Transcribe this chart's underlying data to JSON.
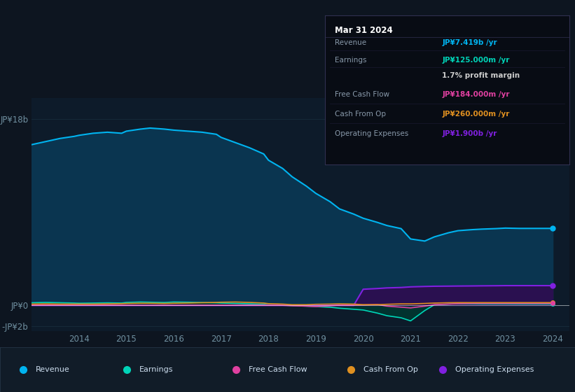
{
  "background_color": "#0d1520",
  "plot_bg_color": "#0d1b2a",
  "years_x": [
    2013.0,
    2013.3,
    2013.6,
    2013.9,
    2014.0,
    2014.3,
    2014.6,
    2014.9,
    2015.0,
    2015.3,
    2015.5,
    2015.8,
    2016.0,
    2016.3,
    2016.6,
    2016.9,
    2017.0,
    2017.3,
    2017.6,
    2017.9,
    2018.0,
    2018.3,
    2018.5,
    2018.8,
    2019.0,
    2019.3,
    2019.5,
    2019.8,
    2020.0,
    2020.3,
    2020.5,
    2020.8,
    2021.0,
    2021.3,
    2021.5,
    2021.8,
    2022.0,
    2022.3,
    2022.5,
    2022.8,
    2023.0,
    2023.3,
    2023.6,
    2023.9,
    2024.0
  ],
  "revenue": [
    15.5,
    15.8,
    16.1,
    16.3,
    16.4,
    16.6,
    16.7,
    16.6,
    16.8,
    17.0,
    17.1,
    17.0,
    16.9,
    16.8,
    16.7,
    16.5,
    16.2,
    15.7,
    15.2,
    14.6,
    14.0,
    13.2,
    12.4,
    11.5,
    10.8,
    10.0,
    9.3,
    8.8,
    8.4,
    8.0,
    7.7,
    7.4,
    6.4,
    6.2,
    6.6,
    7.0,
    7.2,
    7.3,
    7.35,
    7.4,
    7.45,
    7.42,
    7.42,
    7.42,
    7.419
  ],
  "earnings": [
    0.25,
    0.28,
    0.25,
    0.22,
    0.2,
    0.22,
    0.24,
    0.22,
    0.28,
    0.32,
    0.3,
    0.27,
    0.32,
    0.3,
    0.27,
    0.24,
    0.22,
    0.18,
    0.14,
    0.1,
    0.05,
    0.02,
    -0.03,
    -0.08,
    -0.12,
    -0.18,
    -0.28,
    -0.38,
    -0.45,
    -0.75,
    -1.0,
    -1.2,
    -1.5,
    -0.5,
    0.05,
    0.12,
    0.14,
    0.14,
    0.13,
    0.13,
    0.13,
    0.125,
    0.125,
    0.125,
    0.125
  ],
  "free_cash_flow": [
    0.02,
    0.02,
    0.02,
    0.02,
    0.02,
    0.02,
    0.02,
    0.02,
    0.02,
    0.02,
    0.02,
    0.02,
    0.02,
    0.02,
    0.02,
    0.02,
    0.02,
    0.02,
    0.02,
    0.02,
    0.01,
    0.0,
    -0.04,
    -0.08,
    -0.12,
    -0.04,
    0.01,
    0.02,
    0.04,
    0.08,
    -0.08,
    -0.18,
    -0.25,
    -0.08,
    0.06,
    0.12,
    0.16,
    0.18,
    0.184,
    0.184,
    0.184,
    0.184,
    0.184,
    0.184,
    0.184
  ],
  "cash_from_op": [
    0.12,
    0.14,
    0.12,
    0.12,
    0.12,
    0.12,
    0.14,
    0.16,
    0.18,
    0.2,
    0.2,
    0.18,
    0.2,
    0.22,
    0.25,
    0.28,
    0.3,
    0.32,
    0.28,
    0.22,
    0.16,
    0.12,
    0.06,
    0.06,
    0.1,
    0.12,
    0.14,
    0.12,
    0.06,
    0.06,
    0.1,
    0.14,
    0.14,
    0.18,
    0.22,
    0.25,
    0.26,
    0.26,
    0.26,
    0.26,
    0.26,
    0.26,
    0.26,
    0.26,
    0.26
  ],
  "op_expenses": [
    0.0,
    0.0,
    0.0,
    0.0,
    0.0,
    0.0,
    0.0,
    0.0,
    0.0,
    0.0,
    0.0,
    0.0,
    0.0,
    0.0,
    0.0,
    0.0,
    0.0,
    0.0,
    0.0,
    0.0,
    0.0,
    0.0,
    0.0,
    0.0,
    0.0,
    0.0,
    0.0,
    0.0,
    1.55,
    1.62,
    1.68,
    1.72,
    1.78,
    1.82,
    1.84,
    1.85,
    1.86,
    1.87,
    1.88,
    1.89,
    1.9,
    1.9,
    1.9,
    1.9,
    1.9
  ],
  "revenue_color": "#00b4f0",
  "revenue_fill": "#0a3550",
  "earnings_color": "#00d4b8",
  "earnings_fill": "#003830",
  "free_cash_flow_color": "#e040a0",
  "cash_from_op_color": "#e09020",
  "op_expenses_color": "#8020e0",
  "op_expenses_fill": "#2a1050",
  "ylim_min": -2.5,
  "ylim_max": 20.0,
  "ytick_labels": [
    "JP¥18b",
    "JP¥0",
    "-JP¥2b"
  ],
  "ytick_vals": [
    18,
    0,
    -2
  ],
  "xtick_labels": [
    "2014",
    "2015",
    "2016",
    "2017",
    "2018",
    "2019",
    "2020",
    "2021",
    "2022",
    "2023",
    "2024"
  ],
  "xtick_vals": [
    2014,
    2015,
    2016,
    2017,
    2018,
    2019,
    2020,
    2021,
    2022,
    2023,
    2024
  ],
  "grid_color": "#1a3040",
  "tooltip_bg": "#080c14",
  "tooltip_border": "#303050",
  "tooltip_title": "Mar 31 2024",
  "tooltip_rows": [
    {
      "label": "Revenue",
      "value": "JP¥7.419b /yr",
      "value_color": "#00b4f0"
    },
    {
      "label": "Earnings",
      "value": "JP¥125.000m /yr",
      "value_color": "#00d4b8"
    },
    {
      "label": "",
      "value": "1.7% profit margin",
      "value_color": "#cccccc"
    },
    {
      "label": "Free Cash Flow",
      "value": "JP¥184.000m /yr",
      "value_color": "#e040a0"
    },
    {
      "label": "Cash From Op",
      "value": "JP¥260.000m /yr",
      "value_color": "#e09020"
    },
    {
      "label": "Operating Expenses",
      "value": "JP¥1.900b /yr",
      "value_color": "#8020e0"
    }
  ],
  "legend_items": [
    {
      "label": "Revenue",
      "color": "#00b4f0"
    },
    {
      "label": "Earnings",
      "color": "#00d4b8"
    },
    {
      "label": "Free Cash Flow",
      "color": "#e040a0"
    },
    {
      "label": "Cash From Op",
      "color": "#e09020"
    },
    {
      "label": "Operating Expenses",
      "color": "#8020e0"
    }
  ],
  "legend_bg": "#111c28",
  "legend_border": "#253545"
}
